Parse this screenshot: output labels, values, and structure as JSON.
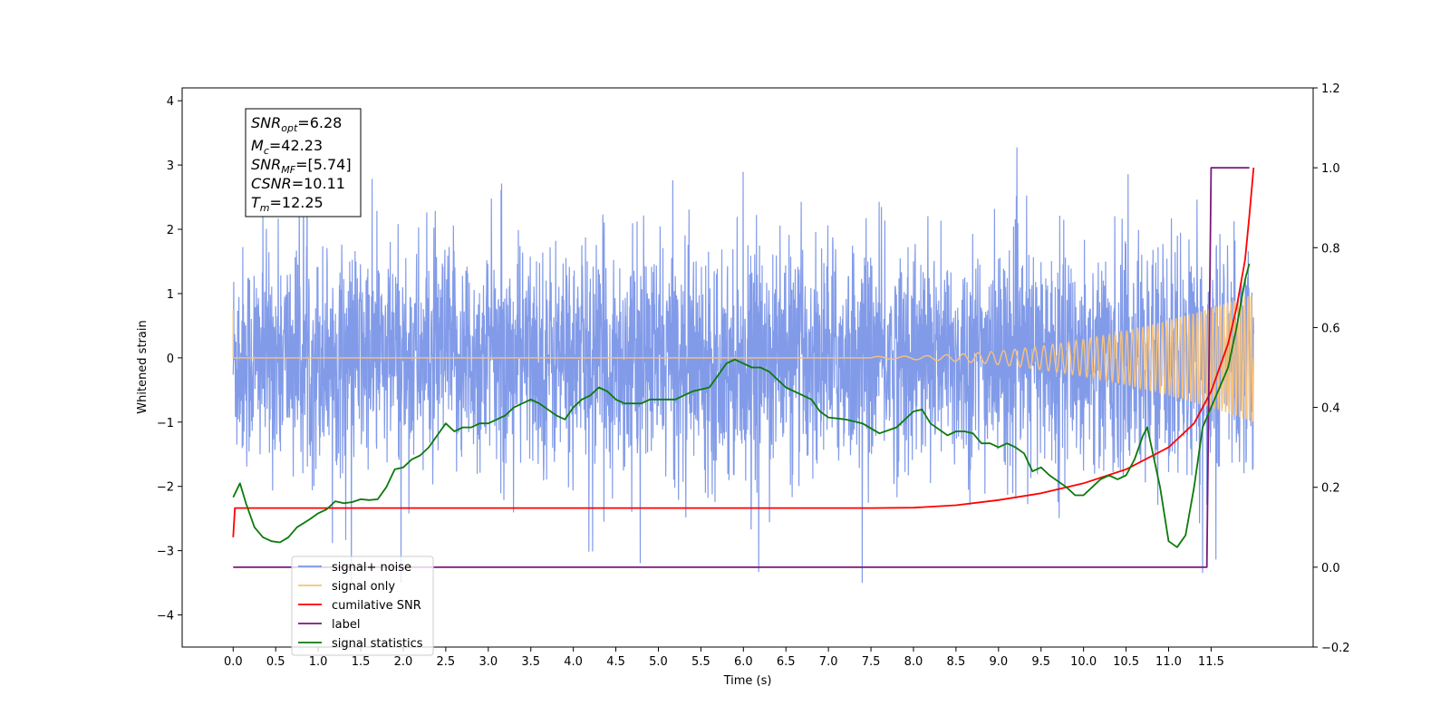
{
  "chart_data": {
    "type": "line",
    "xlabel": "Time (s)",
    "ylabel": "Whitened strain",
    "xlim": [
      -0.6,
      12.7
    ],
    "ylim": [
      -4.5,
      4.2
    ],
    "y2lim": [
      -0.2,
      1.2
    ],
    "grid": false,
    "legend_placement": "lower-left",
    "x_ticks": [
      "0.0",
      "0.5",
      "1.0",
      "1.5",
      "2.0",
      "2.5",
      "3.0",
      "3.5",
      "4.0",
      "4.5",
      "5.0",
      "5.5",
      "6.0",
      "6.5",
      "7.0",
      "7.5",
      "8.0",
      "8.5",
      "9.0",
      "9.5",
      "10.0",
      "10.5",
      "11.0",
      "11.5"
    ],
    "y_ticks": [
      "4",
      "3",
      "2",
      "1",
      "0",
      "−1",
      "−2",
      "−3",
      "−4"
    ],
    "y2_ticks": [
      "1.2",
      "1.0",
      "0.8",
      "0.6",
      "0.4",
      "0.2",
      "0.0",
      "−0.2"
    ],
    "stats": {
      "snr_opt": {
        "sym": "SNR",
        "sub": "opt",
        "val": "=6.28"
      },
      "mc": {
        "sym": "M",
        "sub": "c",
        "val": "=42.23"
      },
      "snr_mf": {
        "sym": "SNR",
        "sub": "MF",
        "val": "=[5.74]"
      },
      "csnr": {
        "sym": "CSNR",
        "sub": "",
        "val": "=10.11"
      },
      "tm": {
        "sym": "T",
        "sub": "m",
        "val": "=12.25"
      }
    },
    "series": [
      {
        "name": "signal+ noise",
        "axis": "left",
        "color": "#7b96e8",
        "description_range": [
          -3.5,
          3.8
        ]
      },
      {
        "name": "signal only",
        "axis": "left",
        "color": "#f7c27a",
        "chirp_end_amplitude": 1.0
      },
      {
        "name": "cumilative SNR",
        "axis": "right",
        "color": "#ff0000",
        "x": [
          0.0,
          0.02,
          0.5,
          2.0,
          4.0,
          6.0,
          7.0,
          7.5,
          8.0,
          8.5,
          9.0,
          9.5,
          10.0,
          10.5,
          11.0,
          11.3,
          11.5,
          11.7,
          11.8,
          11.9,
          11.95,
          12.0
        ],
        "y": [
          0.075,
          0.148,
          0.148,
          0.148,
          0.148,
          0.148,
          0.148,
          0.148,
          0.149,
          0.155,
          0.168,
          0.185,
          0.21,
          0.245,
          0.3,
          0.36,
          0.44,
          0.56,
          0.65,
          0.77,
          0.88,
          1.0
        ]
      },
      {
        "name": "label",
        "axis": "right",
        "color": "#7a1a7a",
        "x": [
          0.0,
          11.45,
          11.5,
          11.95,
          11.95
        ],
        "y": [
          0.0,
          0.0,
          1.0,
          1.0,
          1.0
        ]
      },
      {
        "name": "signal statistics",
        "axis": "right",
        "color": "#0c7a0c",
        "x": [
          0.0,
          0.08,
          0.15,
          0.25,
          0.35,
          0.45,
          0.55,
          0.65,
          0.75,
          0.9,
          1.0,
          1.1,
          1.2,
          1.3,
          1.4,
          1.5,
          1.6,
          1.7,
          1.8,
          1.9,
          2.0,
          2.1,
          2.2,
          2.3,
          2.4,
          2.5,
          2.6,
          2.7,
          2.8,
          2.9,
          3.0,
          3.1,
          3.2,
          3.3,
          3.4,
          3.5,
          3.6,
          3.7,
          3.8,
          3.9,
          4.0,
          4.1,
          4.2,
          4.3,
          4.4,
          4.5,
          4.6,
          4.7,
          4.8,
          4.9,
          5.0,
          5.2,
          5.4,
          5.6,
          5.7,
          5.8,
          5.9,
          6.0,
          6.1,
          6.2,
          6.3,
          6.4,
          6.5,
          6.6,
          6.8,
          6.9,
          7.0,
          7.2,
          7.4,
          7.6,
          7.8,
          7.9,
          8.0,
          8.1,
          8.2,
          8.4,
          8.5,
          8.6,
          8.7,
          8.8,
          8.9,
          9.0,
          9.1,
          9.2,
          9.3,
          9.4,
          9.5,
          9.6,
          9.8,
          9.9,
          10.0,
          10.1,
          10.2,
          10.3,
          10.4,
          10.5,
          10.6,
          10.7,
          10.75,
          10.8,
          10.9,
          11.0,
          11.1,
          11.2,
          11.3,
          11.4,
          11.5,
          11.6,
          11.7,
          11.8,
          11.9,
          11.95
        ],
        "y": [
          0.175,
          0.21,
          0.16,
          0.1,
          0.075,
          0.065,
          0.062,
          0.075,
          0.1,
          0.12,
          0.135,
          0.145,
          0.165,
          0.16,
          0.163,
          0.17,
          0.168,
          0.17,
          0.2,
          0.245,
          0.25,
          0.27,
          0.28,
          0.3,
          0.33,
          0.36,
          0.34,
          0.35,
          0.35,
          0.36,
          0.36,
          0.37,
          0.38,
          0.4,
          0.41,
          0.42,
          0.41,
          0.395,
          0.38,
          0.37,
          0.4,
          0.42,
          0.43,
          0.45,
          0.44,
          0.42,
          0.41,
          0.41,
          0.41,
          0.42,
          0.42,
          0.42,
          0.44,
          0.45,
          0.48,
          0.51,
          0.52,
          0.51,
          0.5,
          0.5,
          0.49,
          0.47,
          0.45,
          0.44,
          0.42,
          0.39,
          0.375,
          0.37,
          0.36,
          0.335,
          0.35,
          0.37,
          0.39,
          0.395,
          0.36,
          0.33,
          0.34,
          0.34,
          0.335,
          0.31,
          0.31,
          0.3,
          0.31,
          0.3,
          0.285,
          0.24,
          0.25,
          0.23,
          0.2,
          0.18,
          0.18,
          0.2,
          0.22,
          0.23,
          0.22,
          0.23,
          0.27,
          0.33,
          0.35,
          0.3,
          0.2,
          0.065,
          0.05,
          0.08,
          0.2,
          0.35,
          0.4,
          0.45,
          0.5,
          0.6,
          0.72,
          0.76
        ]
      }
    ]
  }
}
